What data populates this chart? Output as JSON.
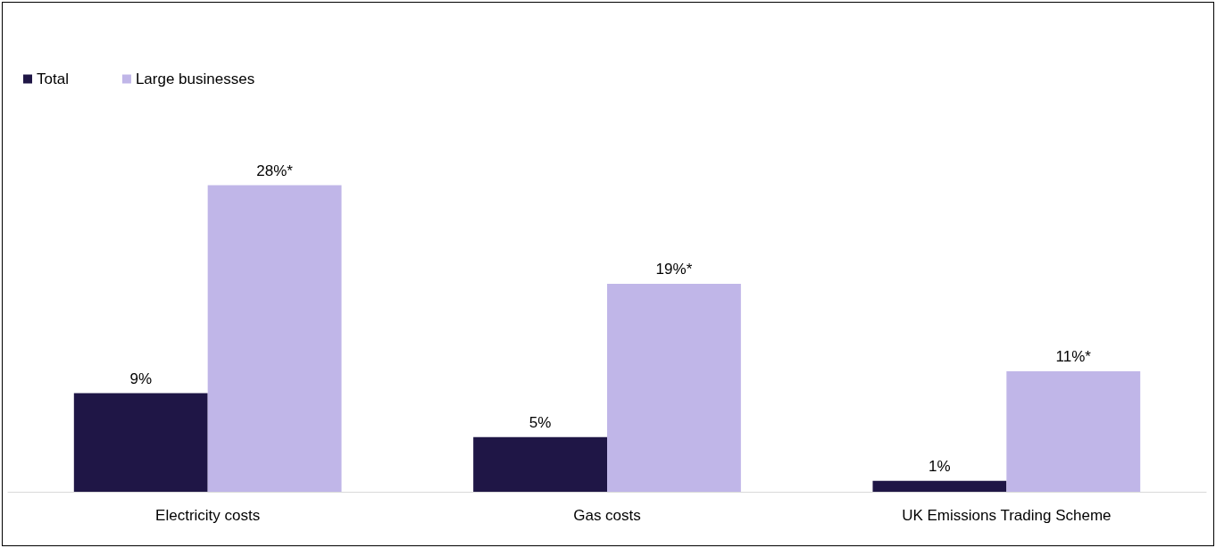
{
  "chart_data": {
    "type": "bar",
    "categories": [
      "Electricity costs",
      "Gas costs",
      "UK Emissions Trading Scheme"
    ],
    "series": [
      {
        "name": "Total",
        "color": "#1f1646",
        "values": [
          9,
          5,
          1
        ],
        "value_labels": [
          "9%",
          "5%",
          "1%"
        ]
      },
      {
        "name": "Large businesses",
        "color": "#c0b6e8",
        "values": [
          28,
          19,
          11
        ],
        "value_labels": [
          "28%*",
          "19%*",
          "11%*"
        ]
      }
    ],
    "legend": "top left"
  }
}
